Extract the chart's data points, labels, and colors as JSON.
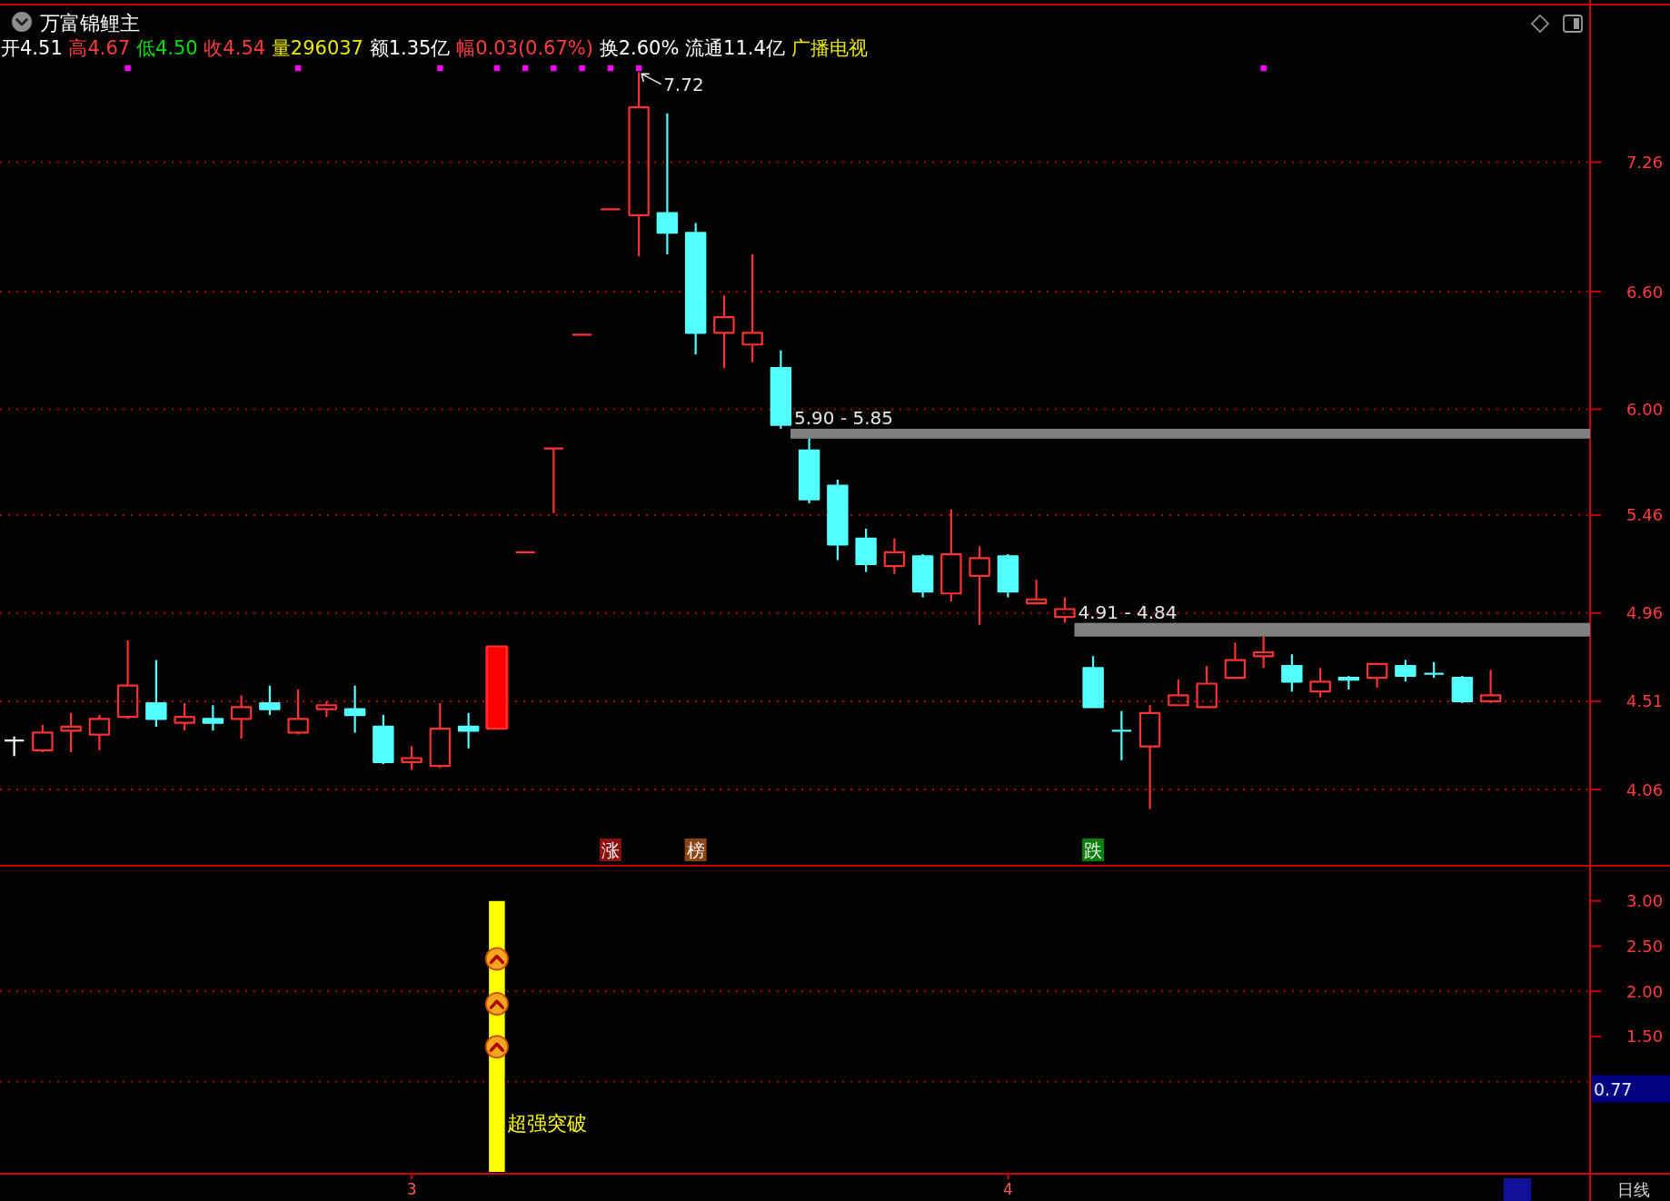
{
  "chart_data": [
    {
      "type": "candlestick",
      "title": "万富锦鲤主",
      "subtitle": "开4.51 高4.67 低4.50 收4.54 量296037 额1.35亿 幅0.03(0.67%) 换2.60% 流通11.4亿 广播电视",
      "annotations": [
        "7.72"
      ],
      "categories": [
        null,
        null,
        null,
        null,
        null,
        null,
        null,
        null,
        null,
        null,
        null,
        null,
        null,
        null,
        null,
        null,
        null,
        null,
        null,
        null,
        null,
        "涨",
        null,
        null,
        "榜",
        null,
        null,
        null,
        null,
        null,
        null,
        null,
        null,
        null,
        null,
        null,
        null,
        null,
        "跌",
        null,
        null,
        null,
        null,
        null,
        null,
        null,
        null,
        null,
        null,
        null,
        null,
        null,
        null,
        null,
        null,
        null
      ],
      "ohlc": [
        [
          4.31,
          4.33,
          4.23,
          4.31
        ],
        [
          4.26,
          4.39,
          4.25,
          4.35
        ],
        [
          4.36,
          4.45,
          4.25,
          4.38
        ],
        [
          4.34,
          4.44,
          4.26,
          4.42
        ],
        [
          4.43,
          4.82,
          4.42,
          4.59
        ],
        [
          4.5,
          4.72,
          4.38,
          4.42
        ],
        [
          4.4,
          4.5,
          4.36,
          4.43
        ],
        [
          4.42,
          4.49,
          4.36,
          4.4
        ],
        [
          4.42,
          4.54,
          4.32,
          4.48
        ],
        [
          4.5,
          4.59,
          4.44,
          4.47
        ],
        [
          4.35,
          4.57,
          4.34,
          4.42
        ],
        [
          4.47,
          4.51,
          4.43,
          4.49
        ],
        [
          4.47,
          4.59,
          4.35,
          4.44
        ],
        [
          4.38,
          4.44,
          4.19,
          4.2
        ],
        [
          4.2,
          4.28,
          4.16,
          4.22
        ],
        [
          4.18,
          4.5,
          4.17,
          4.37
        ],
        [
          4.38,
          4.45,
          4.27,
          4.36
        ],
        [
          4.37,
          4.79,
          4.37,
          4.79
        ],
        [
          5.27,
          5.27,
          5.27,
          5.27
        ],
        [
          5.8,
          5.8,
          5.47,
          5.8
        ],
        [
          6.38,
          6.38,
          6.38,
          6.38
        ],
        [
          7.02,
          7.02,
          7.02,
          7.02
        ],
        [
          6.99,
          7.72,
          6.78,
          7.54
        ],
        [
          7.0,
          7.51,
          6.79,
          6.9
        ],
        [
          6.9,
          6.95,
          6.28,
          6.39
        ],
        [
          6.39,
          6.58,
          6.21,
          6.47
        ],
        [
          6.33,
          6.79,
          6.24,
          6.39
        ],
        [
          6.21,
          6.3,
          5.9,
          5.92
        ],
        [
          5.79,
          5.85,
          5.52,
          5.54
        ],
        [
          5.61,
          5.64,
          5.23,
          5.31
        ],
        [
          5.34,
          5.39,
          5.17,
          5.21
        ],
        [
          5.2,
          5.34,
          5.16,
          5.27
        ],
        [
          5.25,
          5.26,
          5.04,
          5.07
        ],
        [
          5.06,
          5.49,
          5.02,
          5.26
        ],
        [
          5.15,
          5.3,
          4.9,
          5.24
        ],
        [
          5.25,
          5.26,
          5.04,
          5.07
        ],
        [
          5.01,
          5.13,
          5.01,
          5.03
        ],
        [
          4.94,
          5.04,
          4.91,
          4.98
        ],
        [
          4.68,
          4.74,
          4.48,
          4.48
        ],
        [
          4.36,
          4.46,
          4.21,
          4.36
        ],
        [
          4.28,
          4.49,
          3.96,
          4.45
        ],
        [
          4.49,
          4.62,
          4.49,
          4.54
        ],
        [
          4.48,
          4.69,
          4.48,
          4.6
        ],
        [
          4.63,
          4.81,
          4.63,
          4.72
        ],
        [
          4.74,
          4.84,
          4.68,
          4.76
        ],
        [
          4.69,
          4.75,
          4.56,
          4.61
        ],
        [
          4.56,
          4.68,
          4.53,
          4.61
        ],
        [
          4.63,
          4.64,
          4.57,
          4.62
        ],
        [
          4.63,
          4.7,
          4.58,
          4.7
        ],
        [
          4.69,
          4.72,
          4.61,
          4.64
        ],
        [
          4.65,
          4.71,
          4.63,
          4.65
        ],
        [
          4.63,
          4.64,
          4.5,
          4.51
        ],
        [
          4.51,
          4.67,
          4.5,
          4.54
        ],
        null,
        null,
        null
      ],
      "colors": [
        "#ffffff",
        "#ff3232",
        "#ff3232",
        "#ff3232",
        "#ff3232",
        "#54ffff",
        "#ff3232",
        "#54ffff",
        "#ff3232",
        "#54ffff",
        "#ff3232",
        "#ff3232",
        "#54ffff",
        "#54ffff",
        "#ff3232",
        "#ff3232",
        "#54ffff",
        "#ff3232",
        "#ff3232",
        "#ff3232",
        "#ff3232",
        "#ff3232",
        "#ff3232",
        "#54ffff",
        "#54ffff",
        "#ff3232",
        "#ff3232",
        "#54ffff",
        "#54ffff",
        "#54ffff",
        "#54ffff",
        "#ff3232",
        "#54ffff",
        "#ff3232",
        "#ff3232",
        "#54ffff",
        "#ff3232",
        "#ff3232",
        "#54ffff",
        "#54ffff",
        "#ff3232",
        "#ff3232",
        "#ff3232",
        "#ff3232",
        "#ff3232",
        "#54ffff",
        "#ff3232",
        "#54ffff",
        "#ff3232",
        "#54ffff",
        "#54ffff",
        "#54ffff",
        "#ff3232",
        null,
        null,
        null
      ],
      "series": [
        {
          "type": "bar",
          "color": "#ff0000",
          "values": [
            null,
            null,
            null,
            null,
            null,
            null,
            null,
            null,
            null,
            null,
            null,
            null,
            null,
            null,
            null,
            null,
            null,
            0.42,
            null,
            null,
            null,
            null,
            null,
            null,
            null,
            null,
            null,
            null,
            null,
            null,
            null,
            null,
            null,
            null,
            null,
            null,
            null,
            null,
            null,
            null,
            null,
            null,
            null,
            null,
            null,
            null,
            null,
            null,
            null,
            null,
            null,
            null,
            null,
            null,
            null,
            null
          ],
          "base": [
            null,
            null,
            null,
            null,
            null,
            null,
            null,
            null,
            null,
            null,
            null,
            null,
            null,
            null,
            null,
            null,
            null,
            4.37,
            null,
            null,
            null,
            null,
            null,
            null,
            null,
            null,
            null,
            null,
            null,
            null,
            null,
            null,
            null,
            null,
            null,
            null,
            null,
            null,
            null,
            null,
            null,
            null,
            null,
            null,
            null,
            null,
            null,
            null,
            null,
            null,
            null,
            null,
            null,
            null,
            null,
            null
          ]
        },
        {
          "type": "scatter",
          "color": "#ff00ff",
          "marker": "square",
          "values": [
            null,
            null,
            null,
            null,
            7.74,
            null,
            null,
            null,
            null,
            null,
            7.74,
            null,
            null,
            null,
            null,
            7.74,
            null,
            7.74,
            7.74,
            7.74,
            7.74,
            7.74,
            7.74,
            null,
            null,
            null,
            null,
            null,
            null,
            null,
            null,
            null,
            null,
            null,
            null,
            null,
            null,
            null,
            null,
            null,
            null,
            null,
            null,
            null,
            7.74,
            null,
            null,
            null,
            null,
            null,
            null,
            null,
            null,
            null,
            null,
            null
          ]
        }
      ],
      "ylim": [
        3.68,
        8.06
      ],
      "yticks": [
        7.26,
        {
          "value": 6.6,
          "label": "6.60"
        },
        {
          "value": 6,
          "label": "6.00"
        },
        5.46,
        4.96,
        4.51,
        4.06
      ],
      "grid": "y",
      "bands": [
        {
          "axis": "y",
          "from": 5.85,
          "to": 5.9,
          "label": "5.90 - 5.85",
          "color": "#808080"
        },
        {
          "axis": "y",
          "from": 4.84,
          "to": 4.91,
          "label": "4.91 - 4.84",
          "color": "#808080"
        }
      ]
    },
    {
      "type": "bar",
      "categories": [
        null,
        null,
        null,
        null,
        null,
        null,
        null,
        null,
        null,
        null,
        null,
        null,
        null,
        null,
        "3",
        null,
        null,
        null,
        null,
        null,
        null,
        null,
        null,
        null,
        null,
        null,
        null,
        null,
        null,
        null,
        null,
        null,
        null,
        null,
        null,
        "4",
        null,
        null,
        null,
        null,
        null,
        null,
        null,
        null,
        null,
        null,
        null,
        null,
        null,
        null,
        null,
        null,
        null,
        null,
        null,
        null
      ],
      "values": [
        null,
        null,
        null,
        null,
        null,
        null,
        null,
        null,
        null,
        null,
        null,
        null,
        null,
        null,
        null,
        null,
        null,
        3,
        null,
        null,
        null,
        null,
        null,
        null,
        null,
        null,
        null,
        null,
        null,
        null,
        null,
        null,
        null,
        null,
        null,
        null,
        null,
        null,
        null,
        null,
        null,
        null,
        null,
        null,
        null,
        null,
        null,
        null,
        null,
        null,
        null,
        null,
        null,
        null,
        null,
        null
      ],
      "color": "#ffff00",
      "ylim": [
        0,
        3.37
      ],
      "yticks": [
        {
          "value": 3,
          "label": "3.00"
        },
        {
          "value": 2.5,
          "label": "2.50"
        },
        {
          "value": 2,
          "label": "2.00"
        },
        {
          "value": 1.5,
          "label": "1.50"
        }
      ],
      "ref_lines": [
        {
          "axis": "y",
          "value": 2,
          "line_style": "dotted",
          "color": "#b00000"
        },
        {
          "axis": "y",
          "value": 1,
          "line_style": "dotted",
          "color": "#b00000"
        }
      ],
      "annotations": [
        "超强突破",
        "0.77",
        "日线"
      ]
    }
  ]
}
